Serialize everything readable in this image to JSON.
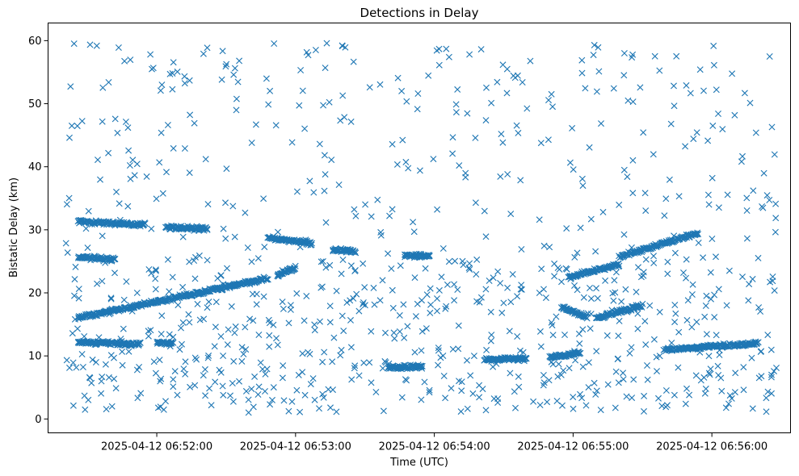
{
  "chart_data": {
    "type": "scatter",
    "title": "Detections in Delay",
    "xlabel": "Time (UTC)",
    "ylabel": "Bistatic Delay (km)",
    "xlim": [
      "2025-04-12 06:51:13",
      "2025-04-12 06:56:34"
    ],
    "ylim": [
      -2.2,
      62.8
    ],
    "x_ticks": [
      "2025-04-12 06:52:00",
      "2025-04-12 06:53:00",
      "2025-04-12 06:54:00",
      "2025-04-12 06:55:00",
      "2025-04-12 06:56:00"
    ],
    "y_ticks": [
      0,
      10,
      20,
      30,
      40,
      50,
      60
    ],
    "marker": "x",
    "marker_color": "#1f77b4",
    "grid": false,
    "legend": "none",
    "point_count_estimate": 1600,
    "series": [
      {
        "kind": "track",
        "segments": [
          {
            "t": [
              "2025-04-12 06:51:26",
              "2025-04-12 06:51:55"
            ],
            "delay": [
              31.3,
              30.8
            ]
          },
          {
            "t": [
              "2025-04-12 06:52:04",
              "2025-04-12 06:52:22"
            ],
            "delay": [
              30.4,
              30.2
            ]
          },
          {
            "t": [
              "2025-04-12 06:52:48",
              "2025-04-12 06:53:07"
            ],
            "delay": [
              28.8,
              27.8
            ]
          },
          {
            "t": [
              "2025-04-12 06:53:16",
              "2025-04-12 06:53:26"
            ],
            "delay": [
              26.8,
              26.5
            ]
          }
        ]
      },
      {
        "kind": "track",
        "segments": [
          {
            "t": [
              "2025-04-12 06:51:26",
              "2025-04-12 06:51:42"
            ],
            "delay": [
              25.7,
              25.3
            ]
          },
          {
            "t": [
              "2025-04-12 06:53:47",
              "2025-04-12 06:53:58"
            ],
            "delay": [
              25.9,
              25.9
            ]
          }
        ]
      },
      {
        "kind": "track",
        "segments": [
          {
            "t": [
              "2025-04-12 06:51:26",
              "2025-04-12 06:52:48"
            ],
            "delay": [
              16.0,
              22.3
            ]
          },
          {
            "t": [
              "2025-04-12 06:52:52",
              "2025-04-12 06:53:00"
            ],
            "delay": [
              22.8,
              24.0
            ]
          }
        ]
      },
      {
        "kind": "track",
        "segments": [
          {
            "t": [
              "2025-04-12 06:51:26",
              "2025-04-12 06:51:53"
            ],
            "delay": [
              12.2,
              11.9
            ]
          },
          {
            "t": [
              "2025-04-12 06:52:00",
              "2025-04-12 06:52:07"
            ],
            "delay": [
              12.1,
              12.0
            ]
          }
        ]
      },
      {
        "kind": "track",
        "segments": [
          {
            "t": [
              "2025-04-12 06:53:40",
              "2025-04-12 06:53:55"
            ],
            "delay": [
              8.2,
              8.3
            ]
          },
          {
            "t": [
              "2025-04-12 06:54:22",
              "2025-04-12 06:54:40"
            ],
            "delay": [
              9.4,
              9.6
            ]
          },
          {
            "t": [
              "2025-04-12 06:54:50",
              "2025-04-12 06:55:03"
            ],
            "delay": [
              9.8,
              10.4
            ]
          }
        ]
      },
      {
        "kind": "track",
        "segments": [
          {
            "t": [
              "2025-04-12 06:54:58",
              "2025-04-12 06:55:20"
            ],
            "delay": [
              22.5,
              24.5
            ]
          },
          {
            "t": [
              "2025-04-12 06:55:20",
              "2025-04-12 06:55:54"
            ],
            "delay": [
              25.7,
              29.5
            ]
          }
        ]
      },
      {
        "kind": "track",
        "segments": [
          {
            "t": [
              "2025-04-12 06:54:55",
              "2025-04-12 06:55:06"
            ],
            "delay": [
              17.8,
              16.0
            ]
          },
          {
            "t": [
              "2025-04-12 06:55:10",
              "2025-04-12 06:55:30"
            ],
            "delay": [
              16.0,
              18.0
            ]
          }
        ]
      },
      {
        "kind": "track",
        "segments": [
          {
            "t": [
              "2025-04-12 06:55:40",
              "2025-04-12 06:56:20"
            ],
            "delay": [
              11.0,
              12.0
            ]
          }
        ]
      },
      {
        "kind": "clutter",
        "t_range": [
          "2025-04-12 06:51:20",
          "2025-04-12 06:56:28"
        ],
        "delay_range": [
          1.0,
          59.7
        ],
        "approx_count": 900
      }
    ]
  }
}
